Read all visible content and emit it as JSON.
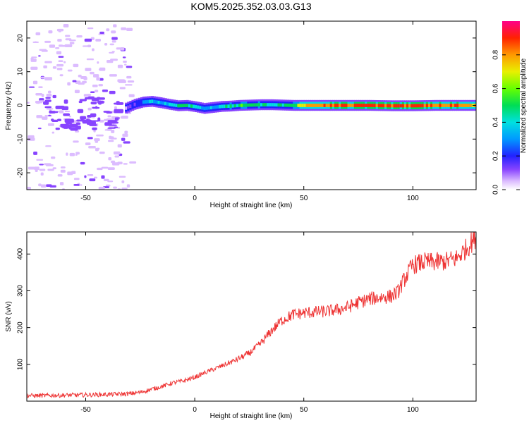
{
  "title": "KOM5.2025.352.03.03.G13",
  "chart_data": [
    {
      "type": "heatmap",
      "xlabel": "Height of straight line (km)",
      "ylabel": "Frequency (Hz)",
      "xlim": [
        -77,
        129
      ],
      "ylim": [
        -25,
        25
      ],
      "xticks": [
        -50,
        0,
        50,
        100
      ],
      "xtick_labels": [
        "-50",
        "0",
        "50",
        "100"
      ],
      "yticks": [
        -20,
        -10,
        0,
        10,
        20
      ],
      "ytick_labels": [
        "-20",
        "-10",
        "0",
        "10",
        "20"
      ],
      "colorbar": {
        "label": "Normalized spectral amplitude",
        "range": [
          0,
          1
        ],
        "ticks": [
          0,
          0.2,
          0.4,
          0.6,
          0.8
        ],
        "tick_labels": [
          "0.0",
          "0.2",
          "0.4",
          "0.6",
          "0.8"
        ]
      },
      "ridge": {
        "x": [
          -32,
          -28,
          -24,
          -20,
          -16,
          -12,
          -8,
          -4,
          0,
          4,
          8,
          12,
          16,
          20,
          25,
          30,
          35,
          40,
          45,
          50,
          60,
          70,
          80,
          90,
          100,
          110,
          120,
          129
        ],
        "freq": [
          -0.8,
          0.3,
          1.0,
          1.2,
          0.8,
          0.3,
          -0.1,
          0.0,
          -0.4,
          -0.9,
          -0.6,
          -0.3,
          -0.2,
          0.0,
          0.1,
          0.2,
          0.2,
          0.1,
          0.0,
          0.0,
          0.0,
          0.0,
          0.0,
          -0.1,
          -0.1,
          0.0,
          0.0,
          0.0
        ],
        "amplitude": [
          0.15,
          0.2,
          0.3,
          0.4,
          0.38,
          0.45,
          0.5,
          0.55,
          0.45,
          0.35,
          0.4,
          0.45,
          0.5,
          0.55,
          0.55,
          0.5,
          0.45,
          0.5,
          0.55,
          0.85,
          0.9,
          0.9,
          0.92,
          0.9,
          0.95,
          0.92,
          0.9,
          0.8
        ]
      }
    },
    {
      "type": "line",
      "xlabel": "Height of straight line (km)",
      "ylabel": "SNR (v/v)",
      "xlim": [
        -77,
        129
      ],
      "ylim": [
        0,
        460
      ],
      "xticks": [
        -50,
        0,
        50,
        100
      ],
      "xtick_labels": [
        "-50",
        "0",
        "50",
        "100"
      ],
      "yticks": [
        100,
        200,
        300,
        400
      ],
      "ytick_labels": [
        "100",
        "200",
        "300",
        "400"
      ],
      "series": [
        {
          "name": "SNR",
          "color": "#ee3333",
          "x": [
            -77,
            -70,
            -60,
            -50,
            -40,
            -30,
            -25,
            -20,
            -15,
            -10,
            -5,
            0,
            5,
            10,
            15,
            20,
            25,
            30,
            35,
            40,
            45,
            50,
            55,
            60,
            65,
            70,
            75,
            80,
            85,
            90,
            93,
            96,
            100,
            105,
            110,
            115,
            120,
            125,
            129
          ],
          "y": [
            15,
            15,
            16,
            17,
            18,
            20,
            24,
            32,
            40,
            50,
            55,
            65,
            78,
            90,
            102,
            115,
            130,
            155,
            190,
            220,
            235,
            240,
            242,
            244,
            248,
            255,
            268,
            278,
            282,
            285,
            295,
            330,
            370,
            378,
            378,
            380,
            388,
            418,
            448
          ]
        }
      ]
    }
  ]
}
